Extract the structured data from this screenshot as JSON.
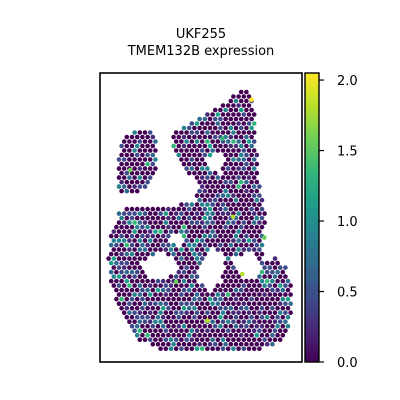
{
  "chart_data": {
    "type": "scatter",
    "subtype": "spatial-hexbin",
    "title_lines": [
      "UKF255",
      "TMEM132B expression"
    ],
    "xlabel": "",
    "ylabel": "",
    "axes_ticks_visible": false,
    "grid": false,
    "legend": "none",
    "colorbar": {
      "placement": "right",
      "colormap": "viridis",
      "range": [
        0.0,
        2.05
      ],
      "ticks": [
        "0.0",
        "0.5",
        "1.0",
        "1.5",
        "2.0"
      ],
      "tick_values": [
        0.0,
        0.5,
        1.0,
        1.5,
        2.0
      ]
    },
    "colors": {
      "viridis": [
        "#440154",
        "#482878",
        "#3e4a89",
        "#31688e",
        "#26828e",
        "#1f9e89",
        "#35b779",
        "#6ece58",
        "#b5de2b",
        "#fde725"
      ],
      "background_spot": "#440154"
    },
    "value_distribution_note_free": true,
    "highlight_spots": [
      {
        "x": 0.78,
        "y": 0.97,
        "v": 2.0
      },
      {
        "x": 0.12,
        "y": 0.7,
        "v": 1.7
      },
      {
        "x": 0.68,
        "y": 0.52,
        "v": 1.8
      },
      {
        "x": 0.37,
        "y": 0.27,
        "v": 1.6
      },
      {
        "x": 0.73,
        "y": 0.3,
        "v": 1.9
      },
      {
        "x": 0.54,
        "y": 0.12,
        "v": 1.8
      },
      {
        "x": 0.85,
        "y": 0.44,
        "v": 1.5
      },
      {
        "x": 0.62,
        "y": 0.82,
        "v": 1.4
      }
    ]
  }
}
